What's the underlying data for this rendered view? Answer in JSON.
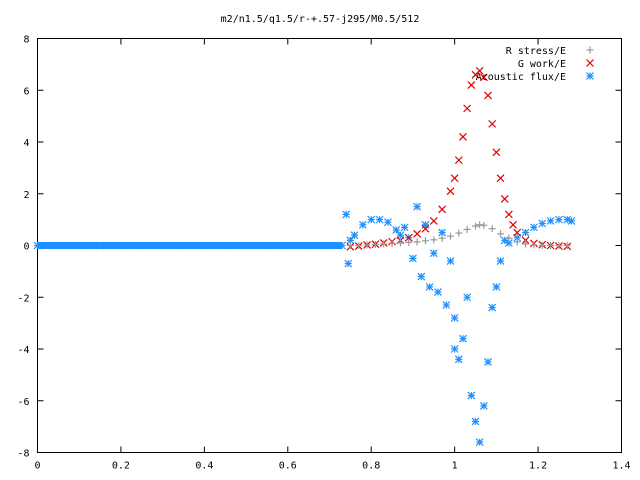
{
  "chart_data": {
    "type": "scatter",
    "title": "m2/n1.5/q1.5/r-+.57-j295/M0.5/512",
    "xlabel": "",
    "ylabel": "",
    "xlim": [
      0,
      1.4
    ],
    "ylim": [
      -8,
      8
    ],
    "xticks": [
      "0",
      "0.2",
      "0.4",
      "0.6",
      "0.8",
      "1",
      "1.2",
      "1.4"
    ],
    "yticks": [
      "-8",
      "-6",
      "-4",
      "-2",
      "0",
      "2",
      "4",
      "6",
      "8"
    ],
    "grid": false,
    "legend_position": "top-right",
    "series": [
      {
        "name": "R stress/E",
        "marker": "plus",
        "color": "#999999",
        "x": [
          0.75,
          0.77,
          0.79,
          0.81,
          0.83,
          0.85,
          0.87,
          0.89,
          0.91,
          0.93,
          0.95,
          0.97,
          0.99,
          1.01,
          1.03,
          1.05,
          1.06,
          1.07,
          1.09,
          1.11,
          1.13,
          1.15,
          1.17,
          1.19,
          1.21,
          1.23,
          1.25,
          1.27
        ],
        "y": [
          0.0,
          0.0,
          0.02,
          0.04,
          0.06,
          0.08,
          0.1,
          0.12,
          0.14,
          0.18,
          0.22,
          0.28,
          0.36,
          0.48,
          0.62,
          0.75,
          0.8,
          0.78,
          0.65,
          0.45,
          0.28,
          0.14,
          0.06,
          0.02,
          0.0,
          0.0,
          0.0,
          0.0
        ]
      },
      {
        "name": "G work/E",
        "marker": "cross",
        "color": "#e00000",
        "x": [
          0.75,
          0.77,
          0.79,
          0.81,
          0.83,
          0.85,
          0.87,
          0.89,
          0.91,
          0.93,
          0.95,
          0.97,
          0.99,
          1.0,
          1.01,
          1.02,
          1.03,
          1.04,
          1.05,
          1.06,
          1.07,
          1.08,
          1.09,
          1.1,
          1.11,
          1.12,
          1.13,
          1.14,
          1.15,
          1.17,
          1.19,
          1.21,
          1.23,
          1.25,
          1.27
        ],
        "y": [
          -0.05,
          -0.02,
          0.02,
          0.05,
          0.1,
          0.15,
          0.2,
          0.3,
          0.45,
          0.65,
          0.95,
          1.4,
          2.1,
          2.6,
          3.3,
          4.2,
          5.3,
          6.2,
          6.6,
          6.75,
          6.5,
          5.8,
          4.7,
          3.6,
          2.6,
          1.8,
          1.2,
          0.8,
          0.5,
          0.2,
          0.08,
          0.03,
          0.0,
          -0.02,
          -0.03
        ]
      },
      {
        "name": "Acoustic flux/E",
        "marker": "star",
        "color": "#1e90ff",
        "x": [
          0.0,
          0.05,
          0.1,
          0.15,
          0.2,
          0.25,
          0.3,
          0.35,
          0.4,
          0.45,
          0.5,
          0.55,
          0.6,
          0.65,
          0.7,
          0.73,
          0.74,
          0.745,
          0.75,
          0.76,
          0.78,
          0.8,
          0.82,
          0.84,
          0.86,
          0.87,
          0.88,
          0.89,
          0.9,
          0.91,
          0.92,
          0.93,
          0.94,
          0.95,
          0.96,
          0.97,
          0.98,
          0.99,
          1.0,
          1.0,
          1.01,
          1.02,
          1.03,
          1.04,
          1.05,
          1.06,
          1.07,
          1.08,
          1.09,
          1.1,
          1.11,
          1.12,
          1.13,
          1.15,
          1.17,
          1.19,
          1.21,
          1.23,
          1.25,
          1.27,
          1.28
        ],
        "y": [
          0.0,
          0.0,
          0.0,
          0.0,
          0.0,
          0.0,
          0.0,
          0.0,
          0.0,
          0.0,
          0.0,
          0.0,
          0.0,
          0.0,
          0.0,
          0.0,
          1.2,
          -0.7,
          0.2,
          0.4,
          0.8,
          1.0,
          1.0,
          0.9,
          0.6,
          0.4,
          0.7,
          0.3,
          -0.5,
          1.5,
          -1.2,
          0.8,
          -1.6,
          -0.3,
          -1.8,
          0.5,
          -2.3,
          -0.6,
          -2.8,
          -4.0,
          -4.4,
          -3.6,
          -2.0,
          -5.8,
          -6.8,
          -7.6,
          -6.2,
          -4.5,
          -2.4,
          -1.6,
          -0.6,
          0.2,
          0.1,
          0.3,
          0.5,
          0.7,
          0.85,
          0.95,
          1.0,
          1.0,
          0.95
        ]
      }
    ]
  }
}
